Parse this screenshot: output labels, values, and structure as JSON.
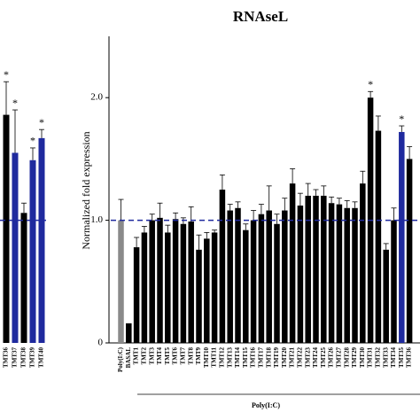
{
  "chart_data": [
    {
      "type": "bar",
      "categories": [
        "TMT36",
        "TMT37",
        "TMT38",
        "TMT39",
        "TMT40"
      ],
      "values": [
        1.86,
        1.55,
        1.06,
        1.49,
        1.67
      ],
      "errors": [
        0.27,
        0.35,
        0.08,
        0.1,
        0.07
      ],
      "bar_colors": [
        "#000000",
        "#1f2a9e",
        "#000000",
        "#1f2a9e",
        "#1f2a9e"
      ],
      "markers": [
        "*",
        "*",
        null,
        "*",
        "*"
      ],
      "ylim": [
        0,
        2.5
      ],
      "reference_line": 1.0,
      "reference_color": "#1f2a9e"
    },
    {
      "type": "bar",
      "title": "RNAseL",
      "ylabel": "Normalized fold expression",
      "group_label": "Poly(I:C)",
      "categories": [
        "Poly(I:C)",
        "BASAL",
        "TMT1",
        "TMT2",
        "TMT3",
        "TMT4",
        "TMT5",
        "TMT6",
        "TMT7",
        "TMT8",
        "TMT9",
        "TMT10",
        "TMT11",
        "TMT12",
        "TMT13",
        "TMT14",
        "TMT15",
        "TMT16",
        "TMT17",
        "TMT18",
        "TMT19",
        "TMT20",
        "TMT21",
        "TMT22",
        "TMT23",
        "TMT24",
        "TMT25",
        "TMT26",
        "TMT27",
        "TMT28",
        "TMT29",
        "TMT30",
        "TMT31",
        "TMT32",
        "TMT33",
        "TMT34",
        "TMT35",
        "TMT36"
      ],
      "values": [
        1.0,
        0.16,
        0.78,
        0.9,
        1.0,
        1.02,
        0.9,
        1.01,
        0.97,
        0.99,
        0.76,
        0.85,
        0.9,
        1.25,
        1.08,
        1.1,
        0.92,
        1.0,
        1.05,
        1.08,
        0.97,
        1.08,
        1.3,
        1.12,
        1.2,
        1.2,
        1.2,
        1.14,
        1.13,
        1.1,
        1.1,
        1.3,
        2.0,
        1.73,
        0.76,
        1.0,
        1.72,
        1.5
      ],
      "errors": [
        0.17,
        0,
        0.08,
        0.05,
        0.05,
        0.12,
        0.06,
        0.05,
        0.05,
        0.12,
        0.12,
        0.05,
        0.02,
        0.12,
        0.05,
        0.05,
        0.05,
        0.08,
        0.08,
        0.2,
        0.08,
        0.1,
        0.12,
        0.1,
        0.1,
        0.05,
        0.08,
        0.05,
        0.05,
        0.06,
        0.05,
        0.1,
        0.05,
        0.12,
        0.05,
        0.1,
        0.05,
        0.1
      ],
      "bar_colors": [
        "#8a8a8a",
        "#000000",
        "#000000",
        "#000000",
        "#000000",
        "#000000",
        "#000000",
        "#000000",
        "#000000",
        "#000000",
        "#000000",
        "#000000",
        "#000000",
        "#000000",
        "#000000",
        "#000000",
        "#000000",
        "#000000",
        "#000000",
        "#000000",
        "#000000",
        "#000000",
        "#000000",
        "#000000",
        "#000000",
        "#000000",
        "#000000",
        "#000000",
        "#000000",
        "#000000",
        "#000000",
        "#000000",
        "#000000",
        "#000000",
        "#000000",
        "#000000",
        "#1f2a9e",
        "#000000"
      ],
      "markers": [
        null,
        null,
        null,
        null,
        null,
        null,
        null,
        null,
        null,
        null,
        null,
        null,
        null,
        null,
        null,
        null,
        null,
        null,
        null,
        null,
        null,
        null,
        null,
        null,
        null,
        null,
        null,
        null,
        null,
        null,
        null,
        null,
        "*",
        null,
        null,
        null,
        "*",
        null
      ],
      "ylim": [
        0,
        2.5
      ],
      "yticks": [
        0,
        {
          "value": 1.0,
          "label": "1.0"
        },
        {
          "value": 2.0,
          "label": "2.0"
        }
      ],
      "reference_line": 1.0,
      "reference_color": "#1f2a9e"
    }
  ]
}
